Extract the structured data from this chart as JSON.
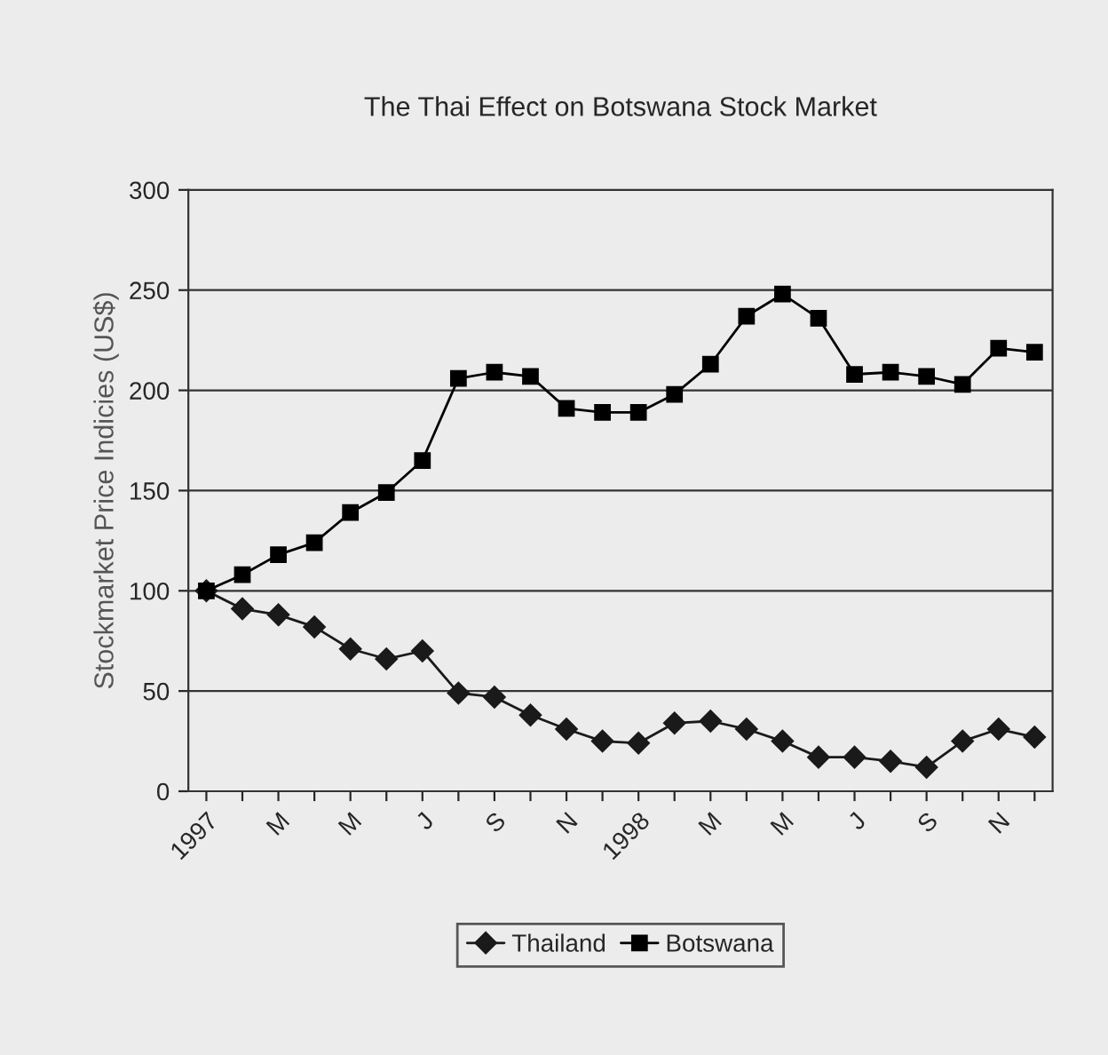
{
  "chart_data": {
    "type": "line",
    "title": "The Thai Effect on Botswana Stock Market",
    "ylabel": "Stockmarket Price Indicies (US$)",
    "categories": [
      "1997",
      null,
      "M",
      null,
      "M",
      null,
      "J",
      null,
      "S",
      null,
      "N",
      null,
      "1998",
      null,
      "M",
      null,
      "M",
      null,
      "J",
      null,
      "S",
      null,
      "N",
      null
    ],
    "series": [
      {
        "name": "Thailand",
        "color": "#1a1a1a",
        "marker": "diamond",
        "values": [
          100,
          91,
          88,
          82,
          71,
          66,
          70,
          49,
          47,
          38,
          31,
          25,
          24,
          34,
          35,
          31,
          25,
          17,
          17,
          15,
          12,
          25,
          31,
          27
        ]
      },
      {
        "name": "Botswana",
        "color": "#000000",
        "marker": "square",
        "values": [
          100,
          108,
          118,
          124,
          139,
          149,
          165,
          206,
          209,
          207,
          191,
          189,
          189,
          198,
          213,
          237,
          248,
          236,
          208,
          209,
          207,
          203,
          221,
          219
        ]
      }
    ],
    "ylim": [
      0,
      300
    ],
    "yticks": [
      0,
      50,
      100,
      150,
      200,
      250,
      300
    ],
    "grid": "y",
    "legend": "bottom",
    "line_style": "solid"
  }
}
